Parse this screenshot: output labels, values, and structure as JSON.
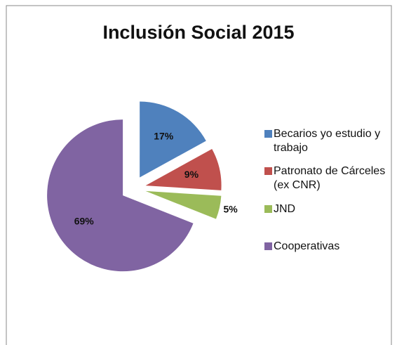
{
  "chart_data": {
    "type": "pie",
    "title": "Inclusión Social 2015",
    "categories": [
      "Becarios yo estudio y trabajo",
      "Patronato de Cárceles (ex CNR)",
      "JND",
      "Cooperativas"
    ],
    "values": [
      17,
      9,
      5,
      69
    ],
    "value_labels": [
      "17%",
      "9%",
      "5%",
      "69%"
    ],
    "colors": [
      "#4f81bd",
      "#c0504d",
      "#9bbb59",
      "#8064a2"
    ],
    "legend": "right"
  }
}
